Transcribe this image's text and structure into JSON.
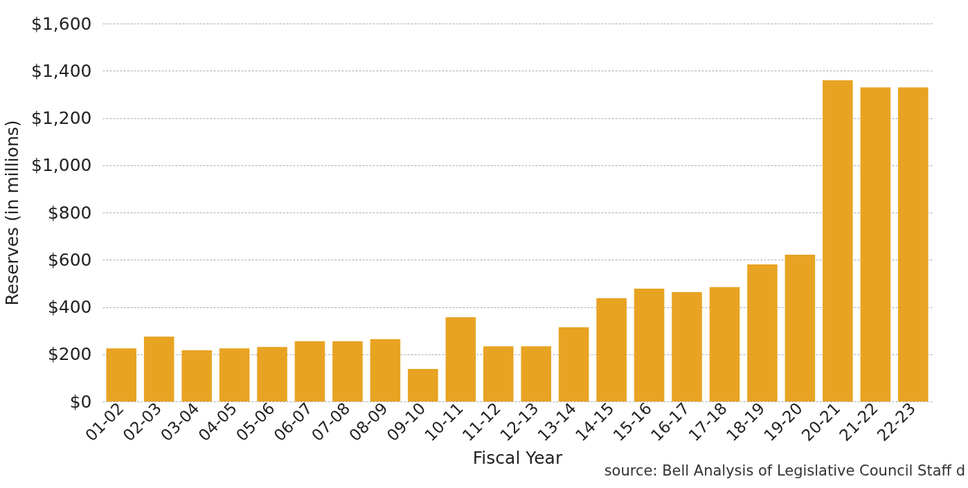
{
  "chart_data": {
    "type": "bar",
    "xlabel": "Fiscal Year",
    "ylabel": "Reserves (in millions)",
    "categories": [
      "01-02",
      "02-03",
      "03-04",
      "04-05",
      "05-06",
      "06-07",
      "07-08",
      "08-09",
      "09-10",
      "10-11",
      "11-12",
      "12-13",
      "13-14",
      "14-15",
      "15-16",
      "16-17",
      "17-18",
      "18-19",
      "19-20",
      "20-21",
      "21-22",
      "22-23"
    ],
    "values": [
      225,
      275,
      217,
      225,
      231,
      255,
      255,
      264,
      138,
      357,
      234,
      234,
      314,
      437,
      478,
      463,
      484,
      580,
      621,
      1360,
      1330,
      1330
    ],
    "color": "#e8a322",
    "ylim": [
      0,
      1600
    ],
    "yticks": [
      {
        "value": 0,
        "label": "$0"
      },
      {
        "value": 200,
        "label": "$200"
      },
      {
        "value": 400,
        "label": "$400"
      },
      {
        "value": 600,
        "label": "$600"
      },
      {
        "value": 800,
        "label": "$800"
      },
      {
        "value": 1000,
        "label": "$1,000"
      },
      {
        "value": 1200,
        "label": "$1,200"
      },
      {
        "value": 1400,
        "label": "$1,400"
      },
      {
        "value": 1600,
        "label": "$1,600"
      }
    ],
    "grid": "y",
    "annotations": [
      "source: Bell Analysis of Legislative Council Staff d"
    ]
  }
}
